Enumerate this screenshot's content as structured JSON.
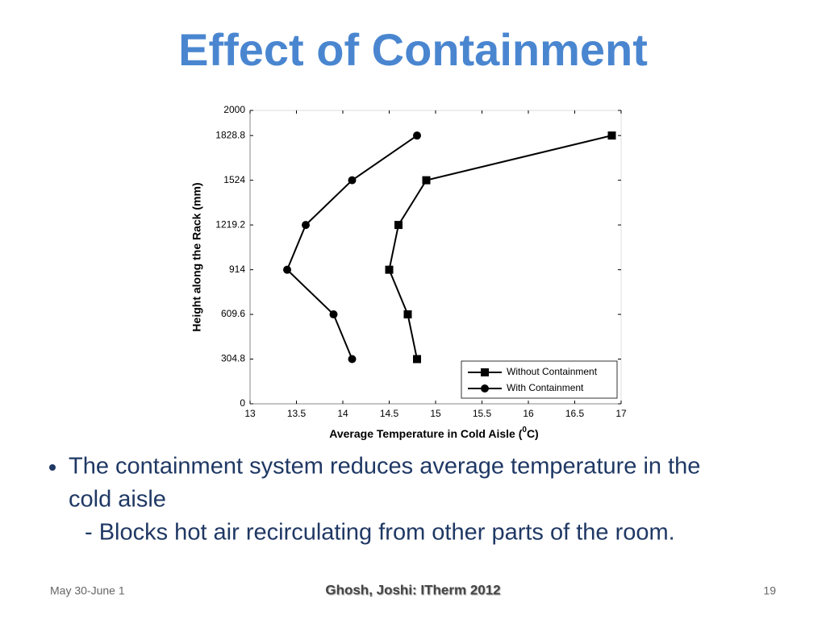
{
  "slide": {
    "title": "Effect of Containment",
    "bullet": {
      "lines": [
        "The containment system reduces average temperature in the",
        "cold aisle"
      ],
      "sub": "- Blocks hot air recirculating from other parts of the room."
    },
    "footer": {
      "date": "May 30-June 1",
      "center": "Ghosh, Joshi: ITherm 2012",
      "page": "19"
    }
  },
  "chart_data": {
    "type": "line",
    "xlabel": [
      "Average Temperature in Cold Aisle (",
      "0",
      "C)"
    ],
    "ylabel": "Height along the Rack (mm)",
    "xlim": [
      13,
      17
    ],
    "xticks": [
      13,
      13.5,
      14,
      14.5,
      15,
      15.5,
      16,
      16.5,
      17
    ],
    "ylim": [
      0,
      2000
    ],
    "yticks": [
      0,
      304.8,
      609.6,
      914,
      1219.2,
      1524,
      1828.8,
      2000
    ],
    "legend": "lower right",
    "series": [
      {
        "name": "Without Containment",
        "color": "#000000",
        "marker": "square",
        "x": [
          14.8,
          14.7,
          14.5,
          14.6,
          14.9,
          16.9
        ],
        "values": [
          304.8,
          609.6,
          914,
          1219.2,
          1524,
          1828.8
        ]
      },
      {
        "name": "With Containment",
        "color": "#000000",
        "marker": "circle",
        "x": [
          14.1,
          13.9,
          13.4,
          13.6,
          14.1,
          14.8
        ],
        "values": [
          304.8,
          609.6,
          914,
          1219.2,
          1524,
          1828.8
        ]
      }
    ]
  }
}
